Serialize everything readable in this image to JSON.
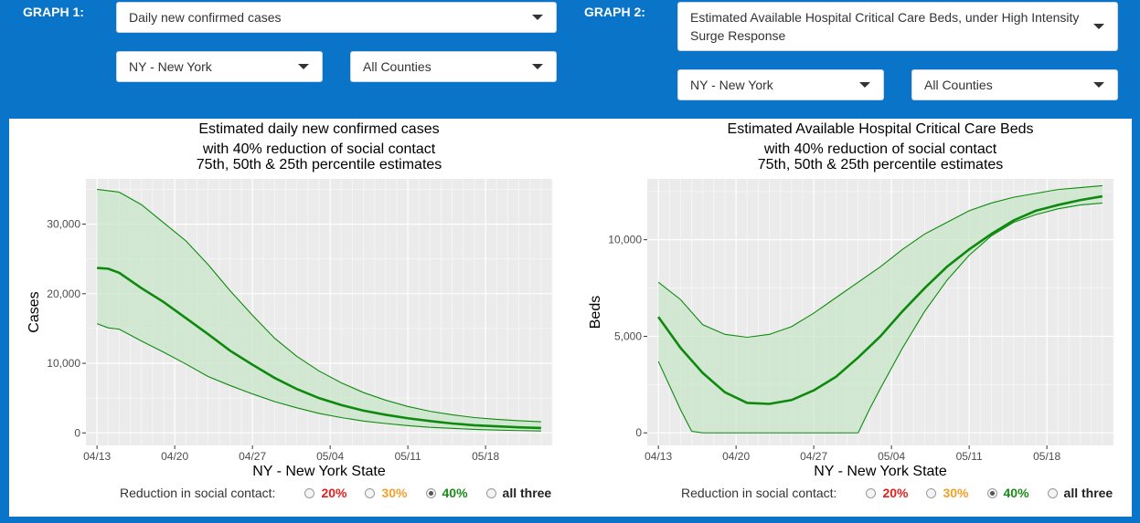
{
  "graph1": {
    "label": "GRAPH 1:",
    "metric": "Daily new confirmed cases",
    "state": "NY - New York",
    "county": "All Counties"
  },
  "graph2": {
    "label": "GRAPH 2:",
    "metric": "Estimated Available Hospital Critical Care Beds, under High Intensity Surge Response",
    "state": "NY - New York",
    "county": "All Counties"
  },
  "radio": {
    "label": "Reduction in social contact:",
    "options": [
      {
        "label": "20%",
        "color": "#e02020",
        "selected": false
      },
      {
        "label": "30%",
        "color": "#f0a028",
        "selected": false
      },
      {
        "label": "40%",
        "color": "#1a8a1a",
        "selected": true
      },
      {
        "label": "all three",
        "color": "#222222",
        "selected": false
      }
    ]
  },
  "colors": {
    "line": "#0d8a0d",
    "band": "#c8e6c8"
  },
  "chart_data": [
    {
      "type": "line",
      "title": [
        "Estimated daily new confirmed cases",
        "with 40% reduction of social contact",
        "75th, 50th & 25th percentile estimates"
      ],
      "xlabel": "NY - New York State",
      "ylabel": "Cases",
      "x_ticks": [
        "04/13",
        "04/20",
        "04/27",
        "05/04",
        "05/11",
        "05/18"
      ],
      "yticks": [
        0,
        10000,
        20000,
        30000
      ],
      "ytick_labels": [
        "0",
        "10,000",
        "20,000",
        "30,000"
      ],
      "xlim": [
        -1,
        41
      ],
      "ylim": [
        -1800,
        36500
      ],
      "series": [
        {
          "name": "75th percentile",
          "x": [
            0,
            2,
            4,
            6,
            8,
            10,
            12,
            14,
            16,
            18,
            20,
            22,
            24,
            26,
            28,
            30,
            32,
            34,
            36,
            38,
            40
          ],
          "values": [
            35000,
            34600,
            32800,
            30200,
            27600,
            24200,
            20400,
            16900,
            13600,
            11000,
            8900,
            7200,
            5800,
            4700,
            3800,
            3100,
            2600,
            2200,
            1950,
            1750,
            1600
          ]
        },
        {
          "name": "50th percentile",
          "x": [
            0,
            1,
            2,
            4,
            6,
            8,
            10,
            12,
            14,
            16,
            18,
            20,
            22,
            24,
            26,
            28,
            30,
            32,
            34,
            36,
            38,
            40
          ],
          "values": [
            23700,
            23600,
            23000,
            20800,
            18800,
            16500,
            14200,
            11800,
            9800,
            7900,
            6300,
            5000,
            4000,
            3200,
            2600,
            2100,
            1700,
            1350,
            1100,
            950,
            800,
            700
          ]
        },
        {
          "name": "25th percentile",
          "x": [
            0,
            1,
            2,
            4,
            6,
            8,
            10,
            12,
            14,
            16,
            18,
            20,
            22,
            24,
            26,
            28,
            30,
            32,
            34,
            36,
            38,
            40
          ],
          "values": [
            15700,
            15100,
            14900,
            13200,
            11600,
            9900,
            8100,
            6800,
            5600,
            4500,
            3600,
            2800,
            2200,
            1700,
            1350,
            1050,
            800,
            650,
            500,
            400,
            330,
            280
          ]
        }
      ]
    },
    {
      "type": "line",
      "title": [
        "Estimated Available Hospital Critical Care Beds",
        "with 40% reduction of social contact",
        "75th, 50th & 25th percentile estimates"
      ],
      "xlabel": "NY - New York State",
      "ylabel": "Beds",
      "x_ticks": [
        "04/13",
        "04/20",
        "04/27",
        "05/04",
        "05/11",
        "05/18"
      ],
      "yticks": [
        0,
        5000,
        10000
      ],
      "ytick_labels": [
        "0",
        "5,000",
        "10,000"
      ],
      "xlim": [
        -1,
        41
      ],
      "ylim": [
        -650,
        13150
      ],
      "series": [
        {
          "name": "75th percentile",
          "x": [
            0,
            2,
            4,
            6,
            8,
            10,
            12,
            14,
            16,
            18,
            20,
            22,
            24,
            26,
            28,
            30,
            32,
            34,
            36,
            38,
            40
          ],
          "values": [
            7800,
            6900,
            5600,
            5100,
            4950,
            5100,
            5500,
            6200,
            7000,
            7800,
            8600,
            9500,
            10300,
            10900,
            11500,
            11900,
            12200,
            12400,
            12600,
            12700,
            12800
          ]
        },
        {
          "name": "50th percentile",
          "x": [
            0,
            2,
            4,
            6,
            8,
            10,
            12,
            14,
            16,
            18,
            20,
            22,
            24,
            26,
            28,
            30,
            32,
            34,
            36,
            38,
            40
          ],
          "values": [
            6000,
            4400,
            3100,
            2100,
            1550,
            1500,
            1700,
            2200,
            2900,
            3900,
            5000,
            6300,
            7500,
            8600,
            9500,
            10300,
            11000,
            11500,
            11800,
            12050,
            12250
          ]
        },
        {
          "name": "25th percentile",
          "x": [
            0,
            2,
            3,
            4,
            6,
            8,
            10,
            12,
            14,
            16,
            18,
            19,
            20,
            22,
            24,
            26,
            28,
            30,
            32,
            34,
            36,
            38,
            40
          ],
          "values": [
            3700,
            1200,
            80,
            0,
            0,
            0,
            0,
            0,
            0,
            0,
            0,
            1200,
            2300,
            4400,
            6300,
            7900,
            9200,
            10200,
            10900,
            11300,
            11600,
            11800,
            11900
          ]
        }
      ]
    }
  ]
}
